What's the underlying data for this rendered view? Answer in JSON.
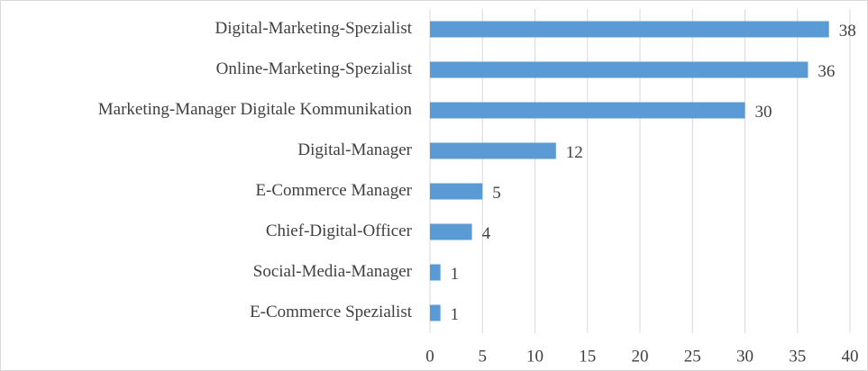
{
  "chart_data": {
    "type": "bar",
    "orientation": "horizontal",
    "categories": [
      "Digital-Marketing-Spezialist",
      "Online-Marketing-Spezialist",
      "Marketing-Manager Digitale Kommunikation",
      "Digital-Manager",
      "E-Commerce Manager",
      "Chief-Digital-Officer",
      "Social-Media-Manager",
      "E-Commerce Spezialist"
    ],
    "values": [
      38,
      36,
      30,
      12,
      5,
      4,
      1,
      1
    ],
    "color": "#5b9bd5",
    "xlim": [
      0,
      40
    ],
    "xticks": [
      0,
      5,
      10,
      15,
      20,
      25,
      30,
      35,
      40
    ],
    "grid": true,
    "data_labels": true
  }
}
